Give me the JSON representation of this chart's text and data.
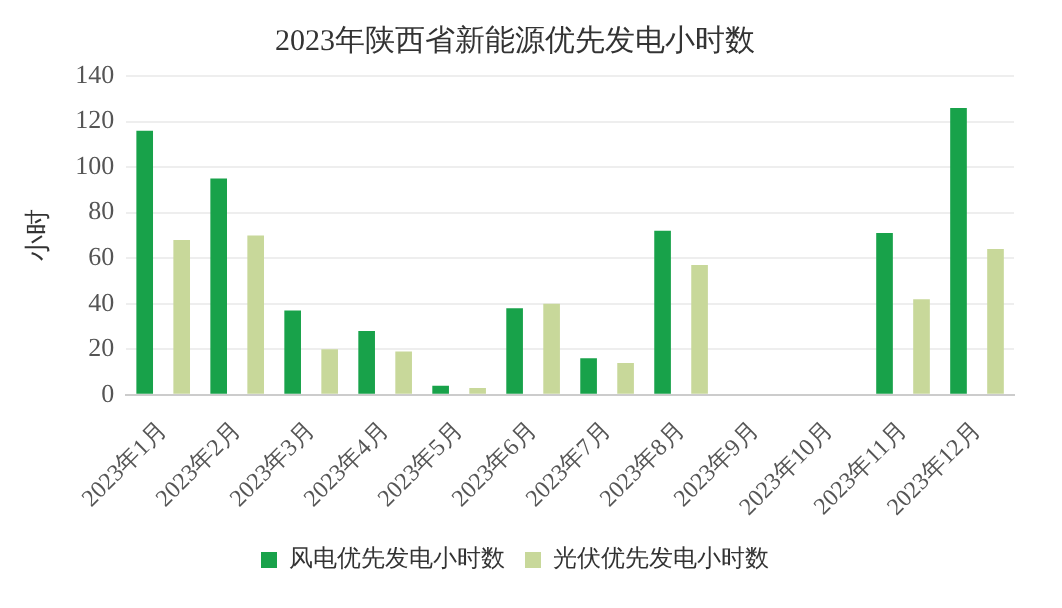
{
  "chart_data": {
    "type": "bar",
    "title": "2023年陕西省新能源优先发电小时数",
    "ylabel": "小时",
    "categories": [
      "2023年1月",
      "2023年2月",
      "2023年3月",
      "2023年4月",
      "2023年5月",
      "2023年6月",
      "2023年7月",
      "2023年8月",
      "2023年9月",
      "2023年10月",
      "2023年11月",
      "2023年12月"
    ],
    "series": [
      {
        "name": "风电优先发电小时数",
        "color": "#18a24a",
        "values": [
          116,
          95,
          37,
          28,
          4,
          38,
          16,
          72,
          null,
          null,
          71,
          126
        ]
      },
      {
        "name": "光伏优先发电小时数",
        "color": "#c8d89a",
        "values": [
          68,
          70,
          20,
          19,
          3,
          40,
          14,
          57,
          null,
          null,
          42,
          64
        ]
      }
    ],
    "ylim": [
      0,
      140
    ],
    "yticks": [
      0,
      20,
      40,
      60,
      80,
      100,
      120,
      140
    ],
    "grid": "y",
    "legend": "bottom"
  }
}
